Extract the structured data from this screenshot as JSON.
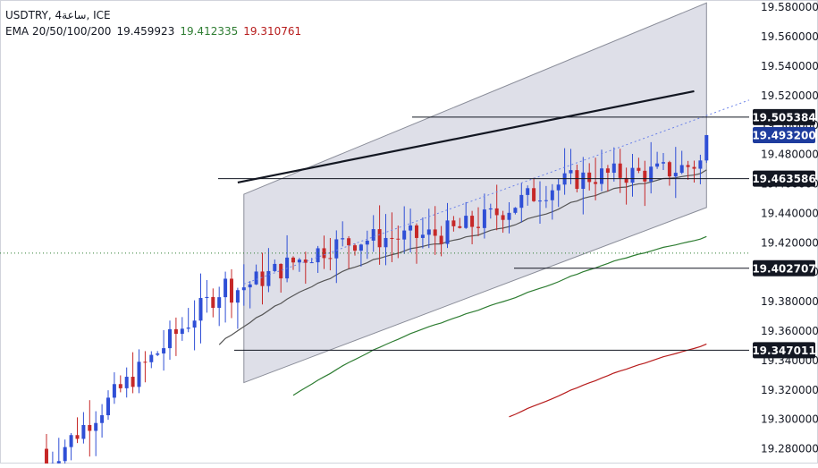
{
  "legend": {
    "title": "USDTRY, 4ساعة, ICE",
    "ema_label": "EMA 20/50/100/200",
    "ema_values": [
      "19.459923",
      "19.412335",
      "19.310761"
    ]
  },
  "colors": {
    "up": "#2f4fd6",
    "down": "#c62828",
    "ema_black": "#555555",
    "ema_green": "#2e7d32",
    "ema_red": "#b71c1c",
    "channel_fill": "#dadce6",
    "price_tag_bg": "#1e3c9e"
  },
  "price_tags": [
    {
      "label": "19.505384",
      "style": "line"
    },
    {
      "label": "19.493200",
      "style": "current"
    },
    {
      "label": "19.463586",
      "style": "line"
    },
    {
      "label": "19.402707",
      "style": "line"
    },
    {
      "label": "19.347011",
      "style": "line"
    }
  ],
  "chart_data": {
    "type": "candlestick",
    "title": "USDTRY, 4ساعة, ICE",
    "y_axis": {
      "position": "right",
      "range": [
        19.27,
        19.585
      ],
      "ticks": [
        "19.280000",
        "19.300000",
        "19.320000",
        "19.340000",
        "19.360000",
        "19.380000",
        "19.400000",
        "19.420000",
        "19.440000",
        "19.460000",
        "19.480000",
        "19.500000",
        "19.520000",
        "19.540000",
        "19.560000",
        "19.580000"
      ]
    },
    "horizontal_levels": [
      19.505384,
      19.463586,
      19.402707,
      19.347011
    ],
    "current_price": 19.4932,
    "dotted_level": 19.413,
    "candle_count": 108,
    "series": [
      {
        "name": "EMA 20/50/100/200",
        "values": [
          19.459923,
          19.412335,
          19.310761
        ]
      }
    ],
    "channel": {
      "upper": [
        [
          0,
          19.453
        ],
        [
          107,
          19.583
        ]
      ],
      "lower": [
        [
          0,
          19.325
        ],
        [
          107,
          19.444
        ]
      ]
    },
    "trendline": [
      [
        0,
        19.461
      ],
      [
        107,
        19.523
      ]
    ]
  }
}
